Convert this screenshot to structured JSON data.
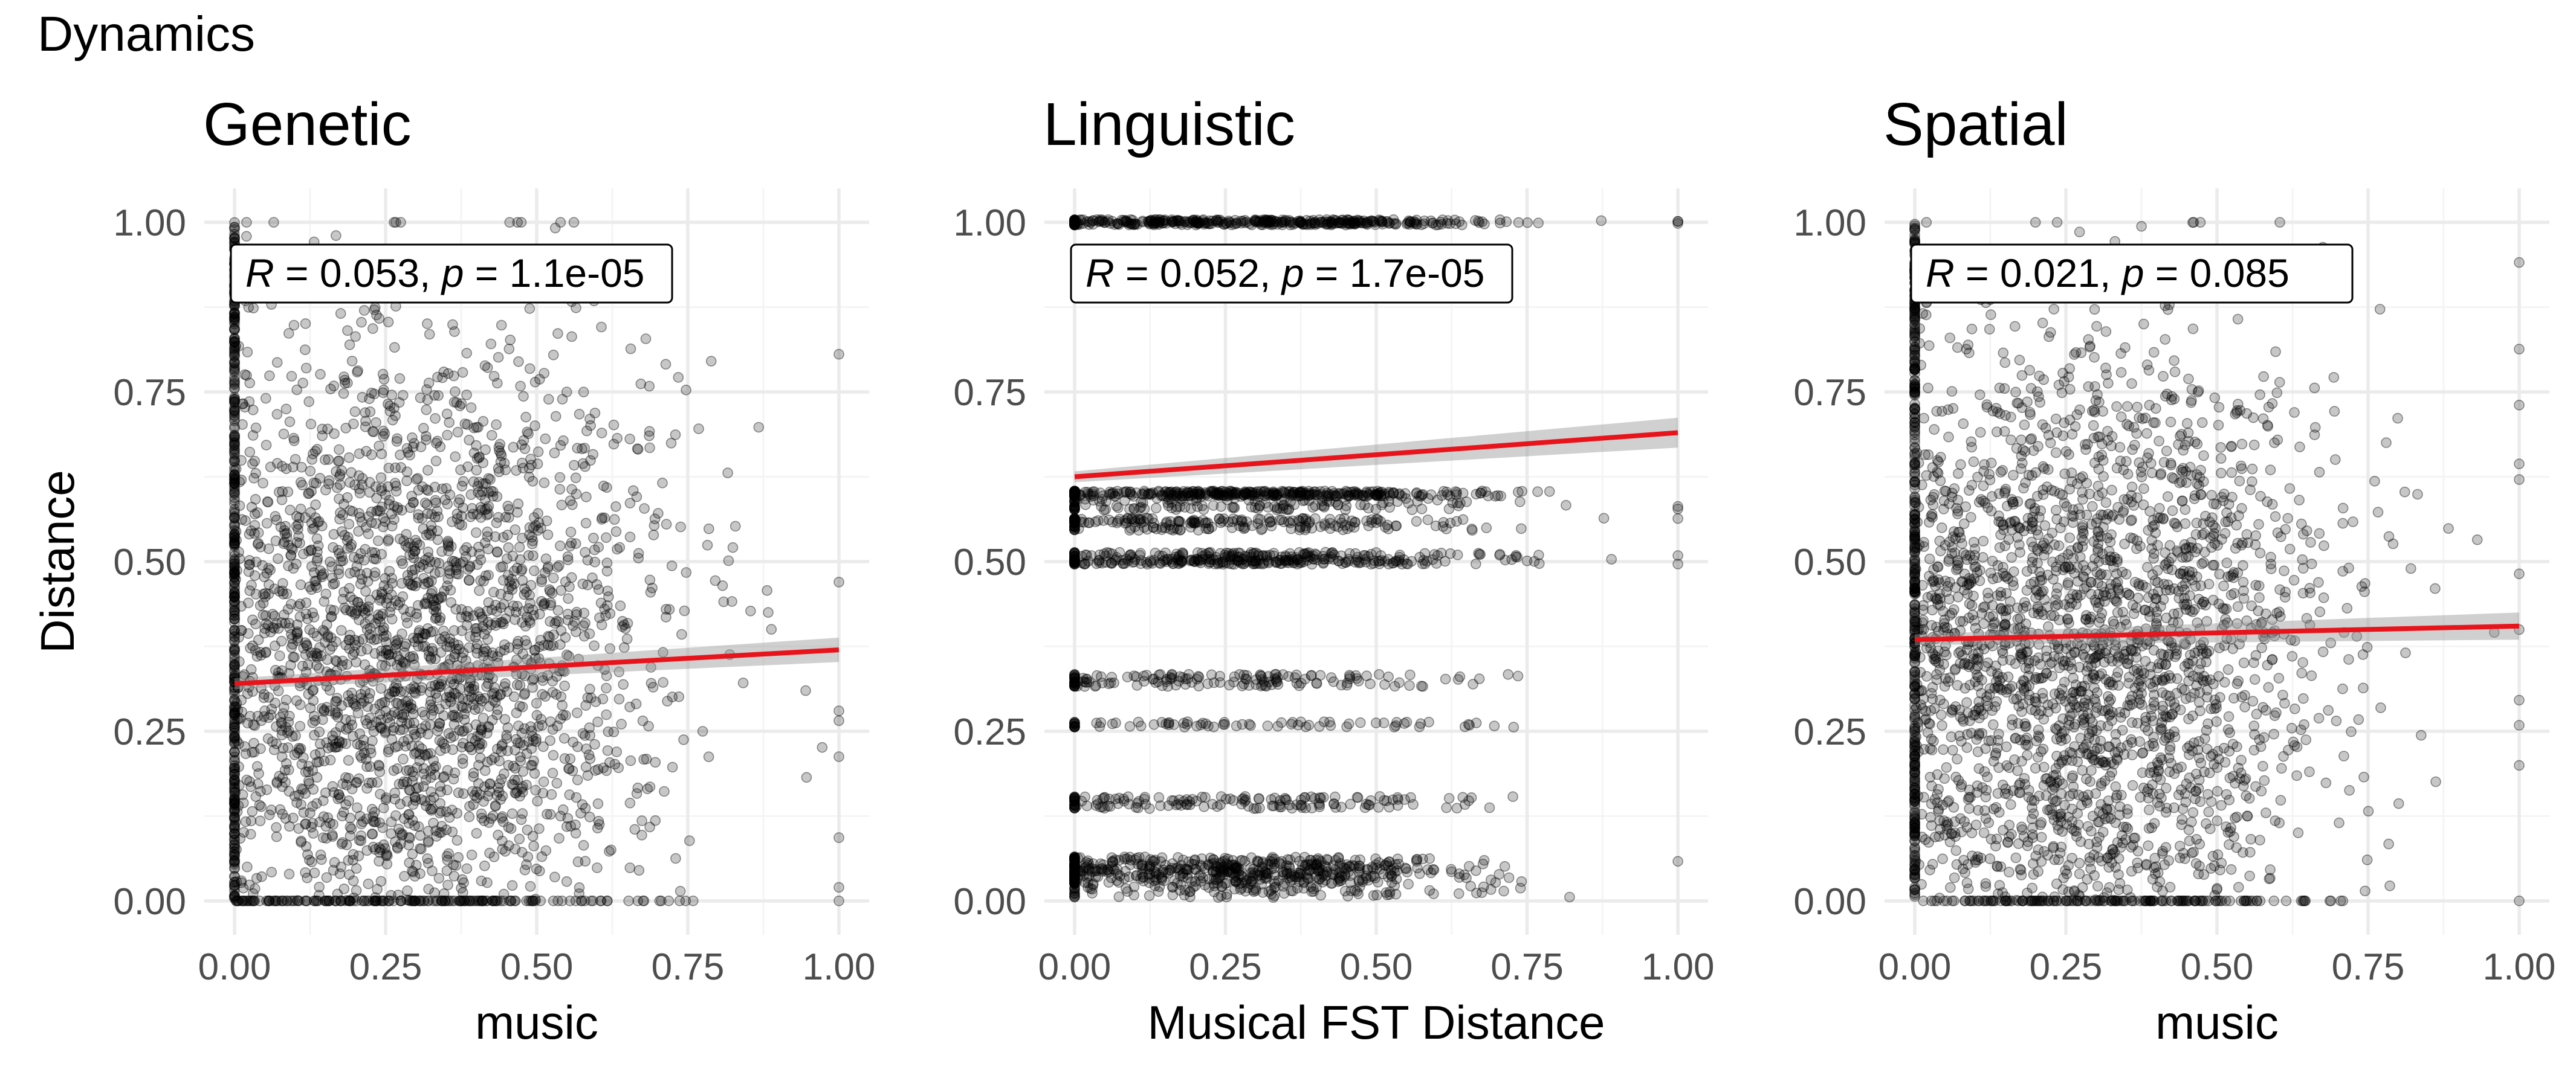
{
  "figure": {
    "title": "Dynamics"
  },
  "chart_data": [
    {
      "type": "scatter",
      "title": "Genetic",
      "xlabel": "music",
      "ylabel": "Distance",
      "xlim": [
        -0.05,
        1.05
      ],
      "ylim": [
        -0.05,
        1.05
      ],
      "x_ticks": [
        "0.00",
        "0.25",
        "0.50",
        "0.75",
        "1.00"
      ],
      "y_ticks": [
        "0.00",
        "0.25",
        "0.50",
        "0.75",
        "1.00"
      ],
      "annotation": {
        "r_symbol": "R",
        "r_value": "0.053",
        "p_symbol": "p",
        "p_value": "1.1e-05"
      },
      "regression": {
        "x": [
          0,
          1
        ],
        "y": [
          0.32,
          0.37
        ],
        "ci_halfwidth": [
          0.008,
          0.018
        ]
      },
      "point_model": {
        "n": 3000,
        "x_mean": 0.3,
        "x_sd": 0.2,
        "x_zero_fraction": 0.14,
        "y_dist": "uniform-wide",
        "y_levels": []
      },
      "grid": true,
      "colors": {
        "points": "#000000",
        "fit_line": "#e8141c",
        "ci_band": "#999999"
      }
    },
    {
      "type": "scatter",
      "title": "Linguistic",
      "xlabel": "Musical FST Distance",
      "ylabel": "",
      "xlim": [
        -0.05,
        1.05
      ],
      "ylim": [
        -0.05,
        1.05
      ],
      "x_ticks": [
        "0.00",
        "0.25",
        "0.50",
        "0.75",
        "1.00"
      ],
      "y_ticks": [
        "0.00",
        "0.25",
        "0.50",
        "0.75",
        "1.00"
      ],
      "annotation": {
        "r_symbol": "R",
        "r_value": "0.052",
        "p_symbol": "p",
        "p_value": "1.7e-05"
      },
      "regression": {
        "x": [
          0,
          1
        ],
        "y": [
          0.625,
          0.69
        ],
        "ci_halfwidth": [
          0.008,
          0.022
        ]
      },
      "point_model": {
        "n": 2600,
        "x_mean": 0.3,
        "x_sd": 0.2,
        "x_zero_fraction": 0.14,
        "y_dist": "levels",
        "y_levels": [
          1.0,
          0.6,
          0.59,
          0.58,
          0.56,
          0.55,
          0.51,
          0.5,
          0.33,
          0.32,
          0.26,
          0.15,
          0.14,
          0.05,
          0.04,
          0.02
        ]
      },
      "grid": true,
      "colors": {
        "points": "#000000",
        "fit_line": "#e8141c",
        "ci_band": "#999999"
      }
    },
    {
      "type": "scatter",
      "title": "Spatial",
      "xlabel": "music",
      "ylabel": "",
      "xlim": [
        -0.05,
        1.05
      ],
      "ylim": [
        -0.05,
        1.05
      ],
      "x_ticks": [
        "0.00",
        "0.25",
        "0.50",
        "0.75",
        "1.00"
      ],
      "y_ticks": [
        "0.00",
        "0.25",
        "0.50",
        "0.75",
        "1.00"
      ],
      "annotation": {
        "r_symbol": "R",
        "r_value": "0.021",
        "p_symbol": "p",
        "p_value": "0.085"
      },
      "regression": {
        "x": [
          0,
          1
        ],
        "y": [
          0.385,
          0.405
        ],
        "ci_halfwidth": [
          0.008,
          0.02
        ]
      },
      "point_model": {
        "n": 3000,
        "x_mean": 0.3,
        "x_sd": 0.2,
        "x_zero_fraction": 0.14,
        "y_dist": "uniform-wide",
        "y_levels": []
      },
      "grid": true,
      "colors": {
        "points": "#000000",
        "fit_line": "#e8141c",
        "ci_band": "#999999"
      }
    }
  ]
}
